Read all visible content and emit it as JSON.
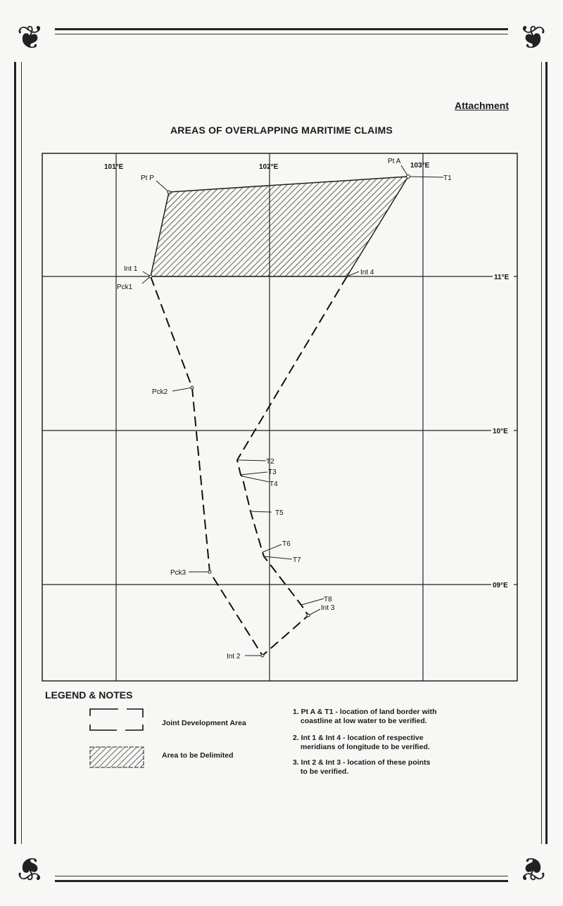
{
  "header": {
    "attachment": "Attachment",
    "title": "AREAS OF OVERLAPPING MARITIME CLAIMS"
  },
  "map": {
    "longitude_labels": [
      "101°E",
      "102°E",
      "103°E"
    ],
    "latitude_labels": [
      "11°E",
      "10°E",
      "09°E"
    ],
    "points": {
      "pt_p": "Pt P",
      "pt_a": "Pt A",
      "t1": "T1",
      "int1": "Int 1",
      "int4": "Int 4",
      "pck1": "Pck1",
      "pck2": "Pck2",
      "pck3": "Pck3",
      "t2": "T2",
      "t3": "T3",
      "t4": "T4",
      "t5": "T5",
      "t6": "T6",
      "t7": "T7",
      "t8": "T8",
      "int3": "Int 3",
      "int2": "Int 2"
    },
    "areas": {
      "joint_development": "dashed boundary",
      "to_be_delimited": "hatched"
    }
  },
  "legend": {
    "heading": "LEGEND & NOTES",
    "items": [
      {
        "label": "Joint Development Area",
        "symbol": "dashed-box"
      },
      {
        "label": "Area to be Delimited",
        "symbol": "hatched-box"
      }
    ],
    "notes": [
      {
        "line1": "1. Pt A & T1 - location of land border with",
        "line2": "coastline at low water to be verified."
      },
      {
        "line1": "2. Int 1 & Int 4 - location of respective",
        "line2": "meridians of longitude to be verified."
      },
      {
        "line1": "3. Int 2 & Int 3 - location of these points",
        "line2": "to be verified."
      }
    ]
  }
}
